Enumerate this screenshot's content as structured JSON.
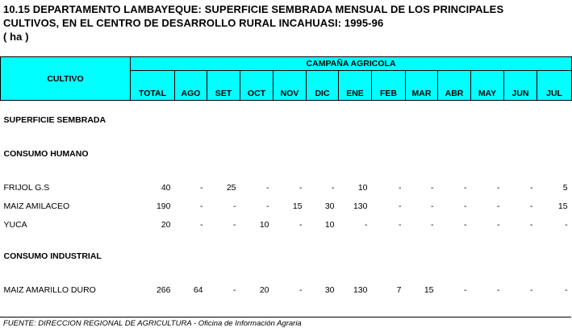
{
  "title": {
    "line1": "10.15  DEPARTAMENTO LAMBAYEQUE: SUPERFICIE SEMBRADA MENSUAL DE LOS PRINCIPALES",
    "line2": "CULTIVOS, EN EL CENTRO DE DESARROLLO RURAL INCAHUASI: 1995-96",
    "line3": "( ha )"
  },
  "header": {
    "cultivo": "CULTIVO",
    "campana": "CAMPAÑA AGRICOLA",
    "columns": [
      "TOTAL",
      "AGO",
      "SET",
      "OCT",
      "NOV",
      "DIC",
      "ENE",
      "FEB",
      "MAR",
      "ABR",
      "MAY",
      "JUN",
      "JUL"
    ]
  },
  "sections": {
    "superficie": "SUPERFICIE SEMBRADA",
    "consumo_humano": "CONSUMO HUMANO",
    "consumo_industrial": "CONSUMO INDUSTRIAL"
  },
  "rows": {
    "frijol": {
      "name": "FRIJOL G.S",
      "values": [
        "40",
        "-",
        "25",
        "-",
        "-",
        "-",
        "10",
        "-",
        "-",
        "-",
        "-",
        "-",
        "5"
      ]
    },
    "maiz_amilaceo": {
      "name": "MAIZ AMILACEO",
      "values": [
        "190",
        "-",
        "-",
        "-",
        "15",
        "30",
        "130",
        "-",
        "-",
        "-",
        "-",
        "-",
        "15"
      ]
    },
    "yuca": {
      "name": "YUCA",
      "values": [
        "20",
        "-",
        "-",
        "10",
        "-",
        "10",
        "-",
        "-",
        "-",
        "-",
        "-",
        "-",
        "-"
      ]
    },
    "maiz_amarillo": {
      "name": "MAIZ AMARILLO DURO",
      "values": [
        "266",
        "64",
        "-",
        "20",
        "-",
        "30",
        "130",
        "7",
        "15",
        "-",
        "-",
        "-",
        "-"
      ]
    }
  },
  "footnote": "FUENTE: DIRECCION REGIONAL DE AGRICULTURA - Oficina de Información Agraria"
}
